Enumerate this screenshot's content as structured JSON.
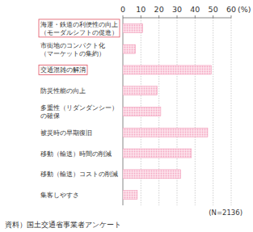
{
  "chart_data": {
    "type": "bar",
    "orientation": "horizontal",
    "x_label": "(%)",
    "categories": [
      "海運・鉄道の利便性の向上\n（モーダルシフトの促進）",
      "市街地のコンパクト化\n（マーケットの集約）",
      "交通混雑の解消",
      "防災性能の向上",
      "多重性（リダンダンシー）\nの確保",
      "被災時の早期復旧",
      "移動（輸送）時間の削減",
      "移動（輸送）コストの削減",
      "集客しやすさ"
    ],
    "values": [
      11,
      7,
      49,
      19,
      21,
      47,
      38,
      32,
      8
    ],
    "color": "#f5a9c4",
    "ylim": [
      0,
      60
    ],
    "yticks": [
      0,
      10,
      20,
      30,
      40,
      50,
      60
    ],
    "grid": true,
    "annotations": [
      "(N=2136)",
      "資料）国土交通省事業者アンケート"
    ]
  }
}
